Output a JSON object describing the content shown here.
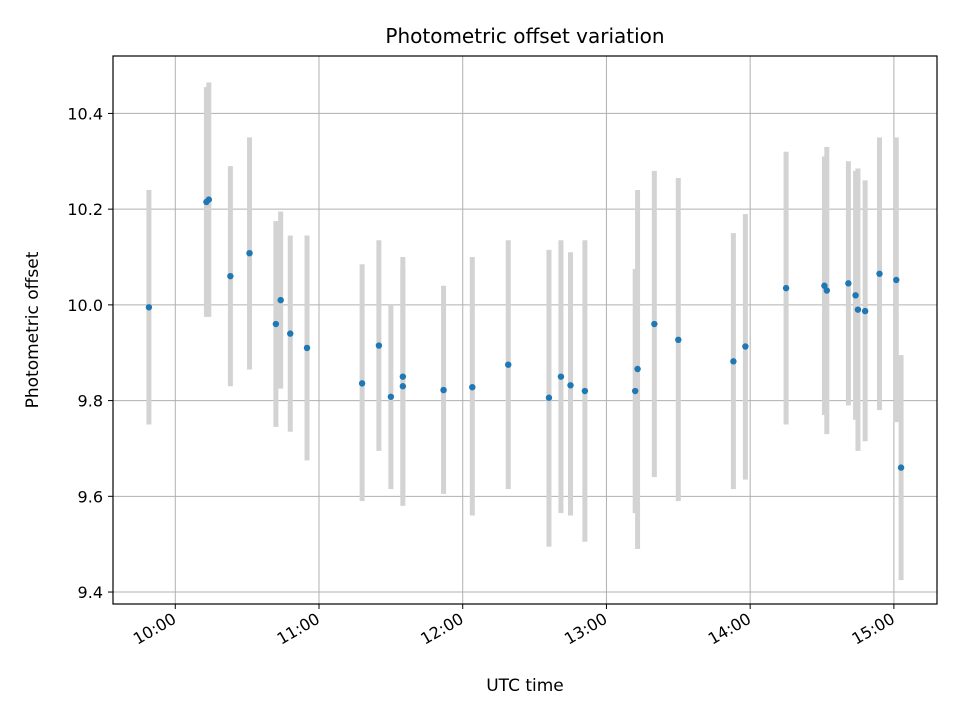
{
  "chart_data": {
    "type": "scatter",
    "title": "Photometric offset variation",
    "xlabel": "UTC time",
    "ylabel": "Photometric offset",
    "x_unit": "time of day (HH:MM)",
    "xlim": [
      "09:34",
      "15:18"
    ],
    "ylim": [
      9.375,
      10.52
    ],
    "x_ticks": [
      "10:00",
      "11:00",
      "12:00",
      "13:00",
      "14:00",
      "15:00"
    ],
    "y_ticks": [
      9.4,
      9.6,
      9.8,
      10.0,
      10.2,
      10.4
    ],
    "y_tick_labels": [
      "9.4",
      "9.6",
      "9.8",
      "10.0",
      "10.2",
      "10.4"
    ],
    "grid": true,
    "legend": "none",
    "colors": {
      "points": "#1f77b4",
      "error_bars": "#d3d3d3",
      "grid": "#b0b0b0"
    },
    "points": [
      {
        "x": "09:49",
        "y": 9.995,
        "lo": 9.75,
        "hi": 10.24
      },
      {
        "x": "10:13",
        "y": 10.215,
        "lo": 9.975,
        "hi": 10.455
      },
      {
        "x": "10:14",
        "y": 10.22,
        "lo": 9.975,
        "hi": 10.465
      },
      {
        "x": "10:23",
        "y": 10.06,
        "lo": 9.83,
        "hi": 10.29
      },
      {
        "x": "10:31",
        "y": 10.108,
        "lo": 9.865,
        "hi": 10.35
      },
      {
        "x": "10:42",
        "y": 9.96,
        "lo": 9.745,
        "hi": 10.175
      },
      {
        "x": "10:44",
        "y": 10.01,
        "lo": 9.825,
        "hi": 10.195
      },
      {
        "x": "10:48",
        "y": 9.94,
        "lo": 9.735,
        "hi": 10.145
      },
      {
        "x": "10:55",
        "y": 9.91,
        "lo": 9.675,
        "hi": 10.145
      },
      {
        "x": "11:18",
        "y": 9.836,
        "lo": 9.59,
        "hi": 10.085
      },
      {
        "x": "11:25",
        "y": 9.915,
        "lo": 9.695,
        "hi": 10.135
      },
      {
        "x": "11:30",
        "y": 9.808,
        "lo": 9.615,
        "hi": 10.0
      },
      {
        "x": "11:35",
        "y": 9.85,
        "lo": 9.6,
        "hi": 10.1
      },
      {
        "x": "11:35",
        "y": 9.83,
        "lo": 9.58,
        "hi": 10.075
      },
      {
        "x": "11:52",
        "y": 9.822,
        "lo": 9.605,
        "hi": 10.04
      },
      {
        "x": "12:04",
        "y": 9.828,
        "lo": 9.56,
        "hi": 10.1
      },
      {
        "x": "12:19",
        "y": 9.875,
        "lo": 9.615,
        "hi": 10.135
      },
      {
        "x": "12:36",
        "y": 9.806,
        "lo": 9.495,
        "hi": 10.115
      },
      {
        "x": "12:41",
        "y": 9.85,
        "lo": 9.565,
        "hi": 10.135
      },
      {
        "x": "12:45",
        "y": 9.832,
        "lo": 9.56,
        "hi": 10.11
      },
      {
        "x": "12:51",
        "y": 9.82,
        "lo": 9.505,
        "hi": 10.135
      },
      {
        "x": "13:12",
        "y": 9.82,
        "lo": 9.565,
        "hi": 10.075
      },
      {
        "x": "13:13",
        "y": 9.866,
        "lo": 9.49,
        "hi": 10.24
      },
      {
        "x": "13:20",
        "y": 9.96,
        "lo": 9.64,
        "hi": 10.28
      },
      {
        "x": "13:30",
        "y": 9.927,
        "lo": 9.59,
        "hi": 10.265
      },
      {
        "x": "13:53",
        "y": 9.882,
        "lo": 9.615,
        "hi": 10.15
      },
      {
        "x": "13:58",
        "y": 9.913,
        "lo": 9.635,
        "hi": 10.19
      },
      {
        "x": "14:15",
        "y": 10.035,
        "lo": 9.75,
        "hi": 10.32
      },
      {
        "x": "14:31",
        "y": 10.04,
        "lo": 9.77,
        "hi": 10.31
      },
      {
        "x": "14:32",
        "y": 10.03,
        "lo": 9.73,
        "hi": 10.33
      },
      {
        "x": "14:41",
        "y": 10.045,
        "lo": 9.79,
        "hi": 10.3
      },
      {
        "x": "14:44",
        "y": 10.02,
        "lo": 9.76,
        "hi": 10.28
      },
      {
        "x": "14:45",
        "y": 9.99,
        "lo": 9.695,
        "hi": 10.285
      },
      {
        "x": "14:48",
        "y": 9.987,
        "lo": 9.715,
        "hi": 10.26
      },
      {
        "x": "14:54",
        "y": 10.065,
        "lo": 9.78,
        "hi": 10.35
      },
      {
        "x": "15:01",
        "y": 10.052,
        "lo": 9.755,
        "hi": 10.35
      },
      {
        "x": "15:03",
        "y": 9.66,
        "lo": 9.425,
        "hi": 9.895
      }
    ]
  }
}
